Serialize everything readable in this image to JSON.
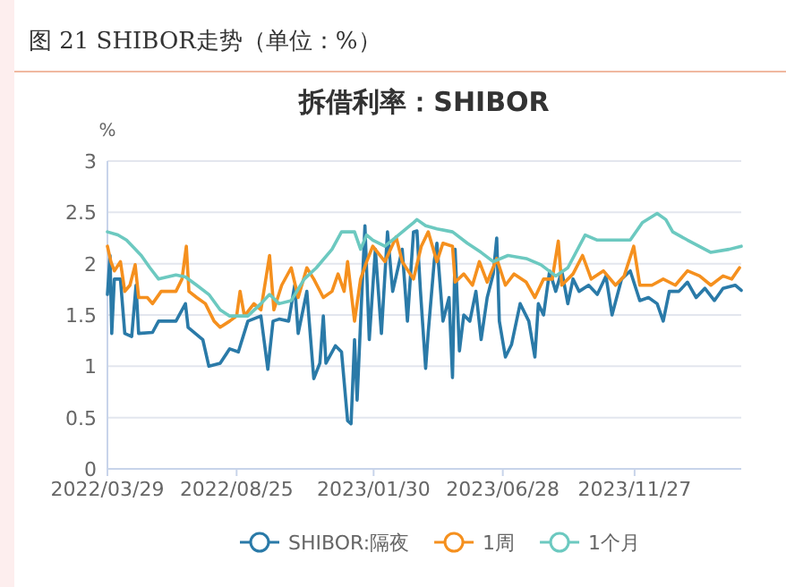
{
  "chart_data": {
    "type": "line",
    "title": "拆借利率：SHIBOR",
    "ylabel": "%",
    "annotations": [
      "图 21 SHIBOR走势（单位：%）"
    ],
    "xlim": [
      "2022-03-29",
      "2024-03-29"
    ],
    "xticks": [
      {
        "value": "2022-03-29",
        "label": "2022/03/29"
      },
      {
        "value": "2022-08-25",
        "label": "2022/08/25"
      },
      {
        "value": "2023-01-30",
        "label": "2023/01/30"
      },
      {
        "value": "2023-06-28",
        "label": "2023/06/28"
      },
      {
        "value": "2023-11-27",
        "label": "2023/11/27"
      }
    ],
    "ylim": [
      0,
      3
    ],
    "yticks": [
      0,
      0.5,
      1,
      1.5,
      2,
      2.5,
      3
    ],
    "grid": "y",
    "legend": "bottom",
    "series": [
      {
        "name": "SHIBOR:隔夜",
        "color": "#2a7aa8",
        "x": [
          "2022-03-29",
          "2022-04-01",
          "2022-04-03",
          "2022-04-06",
          "2022-04-13",
          "2022-04-18",
          "2022-04-26",
          "2022-05-01",
          "2022-05-04",
          "2022-05-20",
          "2022-05-27",
          "2022-06-16",
          "2022-06-27",
          "2022-06-30",
          "2022-07-17",
          "2022-07-24",
          "2022-08-06",
          "2022-08-17",
          "2022-08-27",
          "2022-09-07",
          "2022-09-22",
          "2022-09-30",
          "2022-10-06",
          "2022-10-13",
          "2022-10-24",
          "2022-10-31",
          "2022-11-04",
          "2022-11-14",
          "2022-11-22",
          "2022-11-29",
          "2022-12-03",
          "2022-12-06",
          "2022-12-17",
          "2022-12-24",
          "2022-12-31",
          "2023-01-04",
          "2023-01-08",
          "2023-01-11",
          "2023-01-15",
          "2023-01-20",
          "2023-01-25",
          "2023-02-01",
          "2023-02-08",
          "2023-02-15",
          "2023-02-21",
          "2023-03-04",
          "2023-03-10",
          "2023-03-17",
          "2023-03-21",
          "2023-03-25",
          "2023-03-31",
          "2023-04-03",
          "2023-04-10",
          "2023-04-13",
          "2023-04-20",
          "2023-04-27",
          "2023-05-01",
          "2023-05-04",
          "2023-05-09",
          "2023-05-14",
          "2023-05-21",
          "2023-05-28",
          "2023-06-03",
          "2023-06-10",
          "2023-06-17",
          "2023-06-21",
          "2023-06-24",
          "2023-07-01",
          "2023-07-08",
          "2023-07-18",
          "2023-07-28",
          "2023-08-04",
          "2023-08-08",
          "2023-08-14",
          "2023-08-21",
          "2023-08-28",
          "2023-09-04",
          "2023-09-11",
          "2023-09-17",
          "2023-09-24",
          "2023-10-05",
          "2023-10-15",
          "2023-10-25",
          "2023-11-01",
          "2023-11-12",
          "2023-11-22",
          "2023-12-03",
          "2023-12-13",
          "2023-12-23",
          "2023-12-30",
          "2024-01-06",
          "2024-01-17",
          "2024-01-27",
          "2024-02-06",
          "2024-02-16",
          "2024-02-27",
          "2024-03-08",
          "2024-03-22",
          "2024-03-29"
        ],
        "values": [
          1.7,
          2.08,
          1.32,
          1.85,
          1.85,
          1.32,
          1.29,
          1.79,
          1.32,
          1.33,
          1.44,
          1.44,
          1.61,
          1.38,
          1.26,
          1.0,
          1.03,
          1.17,
          1.14,
          1.44,
          1.49,
          0.97,
          1.44,
          1.46,
          1.44,
          1.79,
          1.32,
          1.73,
          0.88,
          1.03,
          1.49,
          1.03,
          1.2,
          1.14,
          0.47,
          0.44,
          1.26,
          0.67,
          1.44,
          2.37,
          1.26,
          2.14,
          1.32,
          2.31,
          1.73,
          2.14,
          1.44,
          2.31,
          2.32,
          1.74,
          0.98,
          1.33,
          2.03,
          2.2,
          1.44,
          1.67,
          0.89,
          2.14,
          1.15,
          1.5,
          1.44,
          1.73,
          1.26,
          1.67,
          1.9,
          2.25,
          1.44,
          1.09,
          1.21,
          1.61,
          1.44,
          1.09,
          1.61,
          1.5,
          1.93,
          1.73,
          1.93,
          1.61,
          1.85,
          1.73,
          1.79,
          1.7,
          1.88,
          1.5,
          1.85,
          1.93,
          1.64,
          1.67,
          1.61,
          1.44,
          1.73,
          1.73,
          1.82,
          1.67,
          1.76,
          1.64,
          1.76,
          1.79,
          1.74
        ]
      },
      {
        "name": "1周",
        "color": "#f5901e",
        "x": [
          "2022-03-29",
          "2022-04-02",
          "2022-04-06",
          "2022-04-13",
          "2022-04-18",
          "2022-04-24",
          "2022-04-30",
          "2022-05-04",
          "2022-05-14",
          "2022-05-20",
          "2022-05-30",
          "2022-06-16",
          "2022-06-23",
          "2022-06-28",
          "2022-07-01",
          "2022-07-10",
          "2022-07-20",
          "2022-07-30",
          "2022-08-06",
          "2022-08-17",
          "2022-08-25",
          "2022-08-29",
          "2022-09-03",
          "2022-09-14",
          "2022-09-22",
          "2022-10-02",
          "2022-10-07",
          "2022-10-16",
          "2022-10-27",
          "2022-11-04",
          "2022-11-14",
          "2022-11-22",
          "2022-12-03",
          "2022-12-13",
          "2022-12-20",
          "2022-12-27",
          "2022-12-31",
          "2023-01-08",
          "2023-01-15",
          "2023-01-22",
          "2023-01-29",
          "2023-02-12",
          "2023-02-25",
          "2023-03-04",
          "2023-03-17",
          "2023-03-26",
          "2023-04-03",
          "2023-04-13",
          "2023-04-20",
          "2023-05-01",
          "2023-05-04",
          "2023-05-14",
          "2023-05-24",
          "2023-06-01",
          "2023-06-10",
          "2023-06-21",
          "2023-07-01",
          "2023-07-11",
          "2023-07-25",
          "2023-08-04",
          "2023-08-14",
          "2023-08-24",
          "2023-08-31",
          "2023-09-04",
          "2023-09-17",
          "2023-09-28",
          "2023-10-08",
          "2023-10-22",
          "2023-11-05",
          "2023-11-15",
          "2023-11-26",
          "2023-12-03",
          "2023-12-17",
          "2023-12-30",
          "2024-01-13",
          "2024-01-27",
          "2024-02-10",
          "2024-02-23",
          "2024-03-08",
          "2024-03-18",
          "2024-03-27"
        ],
        "values": [
          2.17,
          2.02,
          1.93,
          2.02,
          1.73,
          1.79,
          1.99,
          1.67,
          1.67,
          1.61,
          1.73,
          1.73,
          1.85,
          2.17,
          1.73,
          1.67,
          1.61,
          1.44,
          1.38,
          1.44,
          1.49,
          1.73,
          1.49,
          1.61,
          1.55,
          2.08,
          1.55,
          1.79,
          1.96,
          1.67,
          1.96,
          1.85,
          1.67,
          1.73,
          1.9,
          1.73,
          2.02,
          1.44,
          1.85,
          2.02,
          2.17,
          2.02,
          2.26,
          2.02,
          1.85,
          2.17,
          2.31,
          2.02,
          2.2,
          2.17,
          1.82,
          1.9,
          1.79,
          2.02,
          1.82,
          2.05,
          1.79,
          1.9,
          1.82,
          1.67,
          1.85,
          1.85,
          2.22,
          1.79,
          1.9,
          2.08,
          1.85,
          1.93,
          1.79,
          1.88,
          2.17,
          1.79,
          1.79,
          1.85,
          1.79,
          1.93,
          1.88,
          1.79,
          1.88,
          1.85,
          1.96
        ]
      },
      {
        "name": "1个月",
        "color": "#6cc9c0",
        "x": [
          "2022-03-29",
          "2022-04-10",
          "2022-04-20",
          "2022-05-07",
          "2022-05-17",
          "2022-05-27",
          "2022-06-16",
          "2022-06-27",
          "2022-07-10",
          "2022-07-24",
          "2022-08-06",
          "2022-08-17",
          "2022-09-07",
          "2022-09-22",
          "2022-10-02",
          "2022-10-13",
          "2022-10-27",
          "2022-11-11",
          "2022-11-25",
          "2022-12-13",
          "2022-12-24",
          "2023-01-08",
          "2023-01-15",
          "2023-01-22",
          "2023-01-29",
          "2023-02-12",
          "2023-02-25",
          "2023-03-17",
          "2023-03-21",
          "2023-03-31",
          "2023-04-13",
          "2023-05-01",
          "2023-05-18",
          "2023-06-03",
          "2023-06-17",
          "2023-07-04",
          "2023-07-25",
          "2023-08-11",
          "2023-08-28",
          "2023-09-11",
          "2023-10-01",
          "2023-10-15",
          "2023-11-05",
          "2023-11-22",
          "2023-12-06",
          "2023-12-23",
          "2024-01-02",
          "2024-01-10",
          "2024-01-27",
          "2024-02-23",
          "2024-03-15",
          "2024-03-29"
        ],
        "values": [
          2.31,
          2.28,
          2.23,
          2.08,
          1.96,
          1.85,
          1.89,
          1.87,
          1.79,
          1.7,
          1.55,
          1.49,
          1.49,
          1.61,
          1.7,
          1.61,
          1.64,
          1.85,
          1.96,
          2.14,
          2.31,
          2.31,
          2.14,
          2.28,
          2.23,
          2.17,
          2.26,
          2.4,
          2.43,
          2.37,
          2.34,
          2.31,
          2.2,
          2.11,
          2.02,
          2.08,
          2.05,
          1.99,
          1.88,
          1.96,
          2.28,
          2.23,
          2.23,
          2.23,
          2.4,
          2.49,
          2.43,
          2.31,
          2.23,
          2.11,
          2.14,
          2.17
        ]
      }
    ]
  }
}
